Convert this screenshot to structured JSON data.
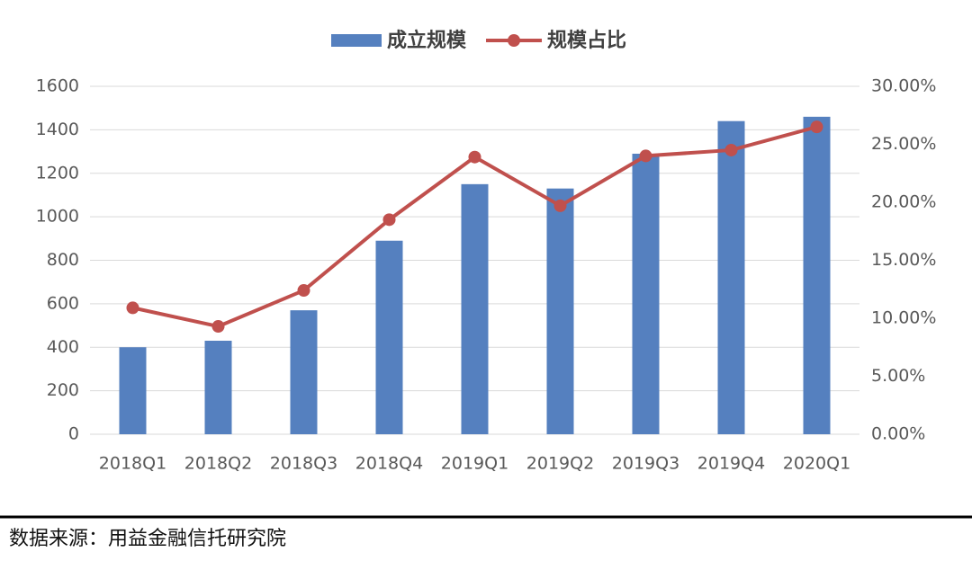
{
  "chart_data": {
    "type": "bar-line",
    "categories": [
      "2018Q1",
      "2018Q2",
      "2018Q3",
      "2018Q4",
      "2019Q1",
      "2019Q2",
      "2019Q3",
      "2019Q4",
      "2020Q1"
    ],
    "series": [
      {
        "name": "成立规模",
        "type": "bar",
        "color": "#5580bf",
        "values": [
          400,
          430,
          570,
          890,
          1150,
          1130,
          1290,
          1440,
          1460
        ]
      },
      {
        "name": "规模占比",
        "type": "line",
        "axis": "y2",
        "color": "#c0504d",
        "values": [
          10.9,
          9.3,
          12.4,
          18.5,
          23.9,
          19.7,
          24.0,
          24.5,
          26.5
        ]
      }
    ],
    "ylim": [
      0,
      1600
    ],
    "yticks": [
      0,
      200,
      400,
      600,
      800,
      1000,
      1200,
      1400,
      1600
    ],
    "y2lim": [
      0,
      30
    ],
    "y2ticks": [
      {
        "value": 0,
        "label": "0.00%"
      },
      {
        "value": 5,
        "label": "5.00%"
      },
      {
        "value": 10,
        "label": "10.00%"
      },
      {
        "value": 15,
        "label": "15.00%"
      },
      {
        "value": 20,
        "label": "20.00%"
      },
      {
        "value": 25,
        "label": "25.00%"
      },
      {
        "value": 30,
        "label": "30.00%"
      }
    ],
    "grid": true,
    "legend": "top",
    "source": "数据来源：用益金融信托研究院"
  }
}
